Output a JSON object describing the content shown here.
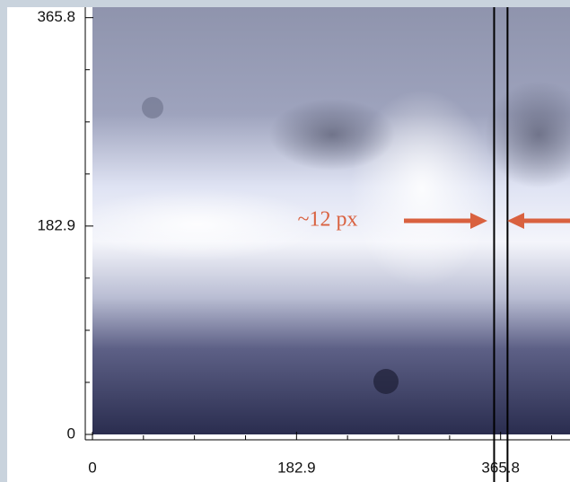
{
  "chart_data": {
    "type": "image",
    "xlim": [
      0,
      428
    ],
    "ylim": [
      0,
      375
    ],
    "xticks": [
      0,
      182.9,
      365.8
    ],
    "yticks": [
      0,
      182.9,
      365.8
    ],
    "xminorticks": [
      45.7,
      91.4,
      137.2,
      228.6,
      274.3,
      320.1,
      411.5
    ],
    "yminorticks": [
      45.7,
      91.4,
      137.2,
      228.6,
      274.3,
      320.1
    ],
    "vlines": [
      360,
      372
    ],
    "vline_color": "#000000",
    "annotation": {
      "text": "~12 px",
      "color": "#d9613f"
    }
  }
}
